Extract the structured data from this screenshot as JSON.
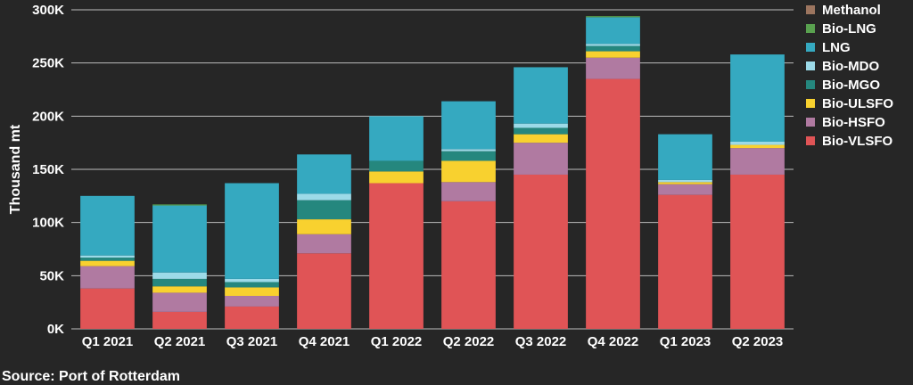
{
  "chart_data": {
    "type": "bar",
    "stacked": true,
    "categories": [
      "Q1 2021",
      "Q2 2021",
      "Q3 2021",
      "Q4 2021",
      "Q1 2022",
      "Q2 2022",
      "Q3 2022",
      "Q4 2022",
      "Q1 2023",
      "Q2 2023"
    ],
    "series": [
      {
        "name": "Bio-VLSFO",
        "color": "#e05456",
        "values": [
          38000,
          16000,
          21000,
          71000,
          137000,
          120000,
          145000,
          235000,
          126000,
          145000
        ]
      },
      {
        "name": "Bio-HSFO",
        "color": "#b07aa1",
        "values": [
          21000,
          18000,
          10000,
          18000,
          0,
          18000,
          30000,
          20000,
          10000,
          25000
        ]
      },
      {
        "name": "Bio-ULSFO",
        "color": "#f8d12f",
        "values": [
          5000,
          6000,
          8000,
          14000,
          11000,
          20000,
          8000,
          6000,
          2000,
          3000
        ]
      },
      {
        "name": "Bio-MGO",
        "color": "#25877e",
        "values": [
          3000,
          7000,
          5000,
          18000,
          10000,
          9000,
          6000,
          5000,
          0,
          0
        ]
      },
      {
        "name": "Bio-MDO",
        "color": "#9cdae8",
        "values": [
          2000,
          6000,
          3000,
          6000,
          0,
          2000,
          4000,
          2000,
          2000,
          3000
        ]
      },
      {
        "name": "LNG",
        "color": "#35a9c0",
        "values": [
          56000,
          63000,
          90000,
          37000,
          42000,
          45000,
          53000,
          25000,
          43000,
          82000
        ]
      },
      {
        "name": "Bio-LNG",
        "color": "#59a14f",
        "values": [
          0,
          1000,
          0,
          0,
          0,
          0,
          0,
          1000,
          0,
          0
        ]
      },
      {
        "name": "Methanol",
        "color": "#9c755f",
        "values": [
          0,
          0,
          0,
          0,
          0,
          0,
          0,
          0,
          0,
          0
        ]
      }
    ],
    "legend_order": [
      "Methanol",
      "Bio-LNG",
      "LNG",
      "Bio-MDO",
      "Bio-MGO",
      "Bio-ULSFO",
      "Bio-HSFO",
      "Bio-VLSFO"
    ],
    "ylabel": "Thousand mt",
    "ylim": [
      0,
      300000
    ],
    "yticks": [
      0,
      50000,
      100000,
      150000,
      200000,
      250000,
      300000
    ],
    "ytick_labels": [
      "0K",
      "50K",
      "100K",
      "150K",
      "200K",
      "250K",
      "300K"
    ],
    "grid": true,
    "legend_position": "right"
  },
  "source": "Source: Port of Rotterdam"
}
